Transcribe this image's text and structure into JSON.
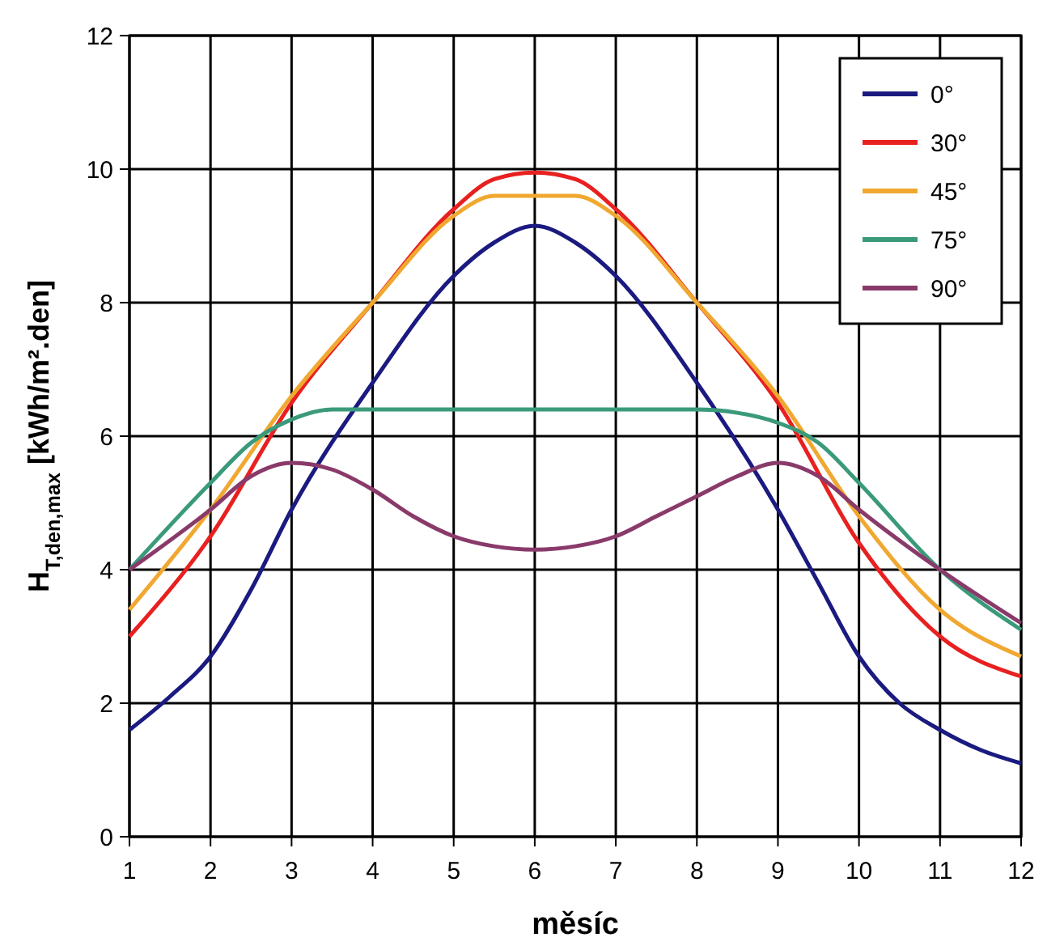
{
  "chart_data": {
    "type": "line",
    "xlabel": "měsíc",
    "ylabel": "H$_{T,den,max}$ [kWh/m².den]",
    "xlim": [
      1,
      12
    ],
    "xticks": [
      1,
      2,
      3,
      4,
      5,
      6,
      7,
      8,
      9,
      10,
      11,
      12
    ],
    "ylim": [
      0,
      12
    ],
    "yticks": [
      0,
      2,
      4,
      6,
      8,
      10,
      12
    ],
    "grid": true,
    "legend": "top right",
    "marker": "none",
    "line_style": "solid",
    "series": [
      {
        "name": "0°",
        "color": "#1a1a80",
        "x": [
          1,
          1.5,
          2,
          2.5,
          3,
          4,
          5,
          5.5,
          6,
          6.5,
          7,
          8,
          9,
          9.5,
          10,
          10.5,
          11,
          11.5,
          12
        ],
        "values": [
          1.6,
          2.1,
          2.7,
          3.7,
          4.9,
          6.8,
          8.4,
          8.9,
          9.15,
          8.9,
          8.4,
          6.8,
          4.9,
          3.8,
          2.7,
          2.0,
          1.6,
          1.3,
          1.1
        ]
      },
      {
        "name": "30°",
        "color": "#e82020",
        "x": [
          1,
          2,
          3,
          4,
          5,
          5.5,
          6,
          6.5,
          7,
          8,
          9,
          10,
          11,
          12
        ],
        "values": [
          3.0,
          4.5,
          6.5,
          8.0,
          9.4,
          9.85,
          9.95,
          9.85,
          9.4,
          8.0,
          6.5,
          4.4,
          3.0,
          2.4
        ]
      },
      {
        "name": "45°",
        "color": "#f0a830",
        "x": [
          1,
          2,
          3,
          4,
          5,
          5.5,
          6,
          6.5,
          7,
          8,
          9,
          10,
          11,
          12
        ],
        "values": [
          3.4,
          4.9,
          6.6,
          8.0,
          9.3,
          9.6,
          9.6,
          9.6,
          9.3,
          8.0,
          6.6,
          4.8,
          3.4,
          2.7
        ]
      },
      {
        "name": "75°",
        "color": "#3a9a7a",
        "x": [
          1,
          2,
          2.5,
          3,
          3.5,
          4,
          5,
          6,
          7,
          8,
          8.5,
          9,
          9.5,
          10,
          11,
          12
        ],
        "values": [
          4.0,
          5.3,
          5.9,
          6.25,
          6.4,
          6.4,
          6.4,
          6.4,
          6.4,
          6.4,
          6.35,
          6.2,
          5.9,
          5.3,
          4.0,
          3.1
        ]
      },
      {
        "name": "90°",
        "color": "#8a3a6a",
        "x": [
          1,
          2,
          2.5,
          3,
          3.5,
          4,
          4.5,
          5,
          5.5,
          6,
          6.5,
          7,
          7.5,
          8,
          8.5,
          9,
          9.5,
          10,
          11,
          12
        ],
        "values": [
          4.0,
          4.9,
          5.4,
          5.6,
          5.5,
          5.2,
          4.8,
          4.5,
          4.35,
          4.3,
          4.35,
          4.5,
          4.8,
          5.1,
          5.4,
          5.6,
          5.4,
          4.9,
          4.0,
          3.2
        ]
      }
    ]
  }
}
